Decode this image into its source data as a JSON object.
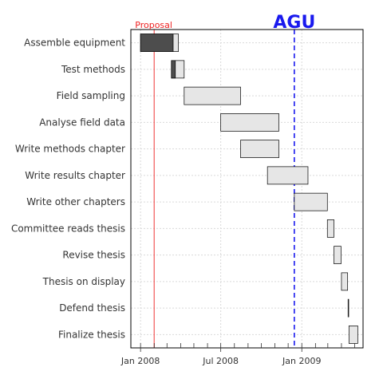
{
  "chart_data": {
    "type": "gantt",
    "tasks": [
      {
        "name": "Assemble equipment",
        "start": "2008-01-01",
        "end": "2008-03-27",
        "done": "2008-03-15"
      },
      {
        "name": "Test methods",
        "start": "2008-03-11",
        "end": "2008-04-09",
        "done": "2008-03-20"
      },
      {
        "name": "Field sampling",
        "start": "2008-04-09",
        "end": "2008-08-15",
        "done": null
      },
      {
        "name": "Analyse field data",
        "start": "2008-07-01",
        "end": "2008-11-10",
        "done": null
      },
      {
        "name": "Write methods chapter",
        "start": "2008-08-15",
        "end": "2008-11-10",
        "done": null
      },
      {
        "name": "Write results chapter",
        "start": "2008-10-15",
        "end": "2009-01-15",
        "done": null
      },
      {
        "name": "Write other chapters",
        "start": "2008-12-15",
        "end": "2009-02-28",
        "done": null
      },
      {
        "name": "Committee reads thesis",
        "start": "2009-02-28",
        "end": "2009-03-15",
        "done": null
      },
      {
        "name": "Revise thesis",
        "start": "2009-03-15",
        "end": "2009-03-31",
        "done": null
      },
      {
        "name": "Thesis on display",
        "start": "2009-04-01",
        "end": "2009-04-15",
        "done": null
      },
      {
        "name": "Defend thesis",
        "start": "2009-04-16",
        "end": "2009-04-17",
        "done": null
      },
      {
        "name": "Finalize thesis",
        "start": "2009-04-18",
        "end": "2009-05-08",
        "done": null
      }
    ],
    "x_ticks": [
      {
        "date": "2008-01-01",
        "label": "Jan 2008"
      },
      {
        "date": "2008-07-01",
        "label": "Jul 2008"
      },
      {
        "date": "2009-01-01",
        "label": "Jan 2009"
      }
    ],
    "minor_ticks": [
      "2008-02-01",
      "2008-03-01",
      "2008-04-01",
      "2008-05-01",
      "2008-06-01",
      "2008-08-01",
      "2008-09-01",
      "2008-10-01",
      "2008-11-01",
      "2008-12-01",
      "2009-02-01",
      "2009-03-01",
      "2009-04-01",
      "2009-05-01"
    ],
    "xlim": [
      "2007-12-10",
      "2009-05-20"
    ],
    "grid": true,
    "annotations": [
      {
        "label": "Proposal",
        "date": "2008-02-01",
        "color": "#ee2222",
        "line": "solid",
        "size": "small"
      },
      {
        "label": "AGU",
        "date": "2008-12-15",
        "color": "#1a1aee",
        "line": "dashed",
        "size": "large"
      }
    ],
    "colors": {
      "done": "#4d4d4d",
      "todo": "#e6e6e6",
      "border": "#000000",
      "grid": "#d9d9d9"
    }
  }
}
